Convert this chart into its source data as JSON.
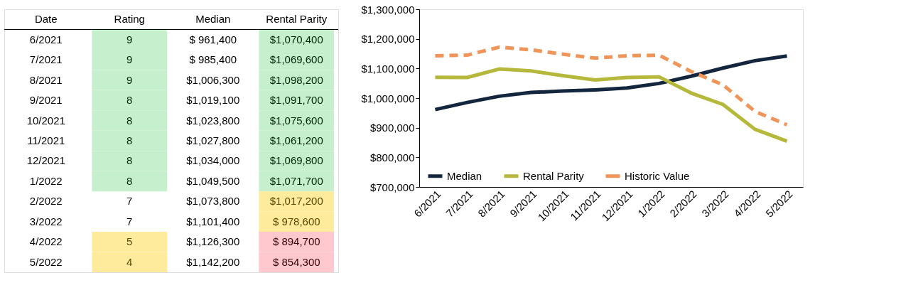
{
  "chart_data": [
    {
      "type": "other",
      "xlabel": "Date",
      "categories": [
        "6/2021",
        "7/2021",
        "8/2021",
        "9/2021",
        "10/2021",
        "11/2021",
        "12/2021",
        "1/2022",
        "2/2022",
        "3/2022",
        "4/2022",
        "5/2022"
      ],
      "series": [
        {
          "name": "Rating",
          "values": [
            9,
            9,
            9,
            8,
            8,
            8,
            8,
            8,
            7,
            7,
            5,
            4
          ],
          "value_labels": [
            "9",
            "9",
            "9",
            "8",
            "8",
            "8",
            "8",
            "8",
            "7",
            "7",
            "5",
            "4"
          ],
          "colors": [
            "#c6efce",
            "#c6efce",
            "#c6efce",
            "#c6efce",
            "#c6efce",
            "#c6efce",
            "#c6efce",
            "#c6efce",
            null,
            null,
            "#ffeb9c",
            "#ffeb9c"
          ]
        },
        {
          "name": "Median",
          "values": [
            961400,
            985400,
            1006300,
            1019100,
            1023800,
            1027800,
            1034000,
            1049500,
            1073800,
            1101400,
            1126300,
            1142200
          ],
          "value_labels": [
            "$ 961,400",
            "$ 985,400",
            "$1,006,300",
            "$1,019,100",
            "$1,023,800",
            "$1,027,800",
            "$1,034,000",
            "$1,049,500",
            "$1,073,800",
            "$1,101,400",
            "$1,126,300",
            "$1,142,200"
          ],
          "colors": [
            null,
            null,
            null,
            null,
            null,
            null,
            null,
            null,
            null,
            null,
            null,
            null
          ]
        },
        {
          "name": "Rental Parity",
          "values": [
            1070400,
            1069600,
            1098200,
            1091700,
            1075600,
            1061200,
            1069800,
            1071700,
            1017200,
            978600,
            894700,
            854300
          ],
          "value_labels": [
            "$1,070,400",
            "$1,069,600",
            "$1,098,200",
            "$1,091,700",
            "$1,075,600",
            "$1,061,200",
            "$1,069,800",
            "$1,071,700",
            "$1,017,200",
            "$ 978,600",
            "$ 894,700",
            "$ 854,300"
          ],
          "colors": [
            "#c6efce",
            "#c6efce",
            "#c6efce",
            "#c6efce",
            "#c6efce",
            "#c6efce",
            "#c6efce",
            "#c6efce",
            "#ffeb9c",
            "#ffeb9c",
            "#ffc7ce",
            "#ffc7ce"
          ]
        }
      ]
    },
    {
      "type": "line",
      "categories": [
        "6/2021",
        "7/2021",
        "8/2021",
        "9/2021",
        "10/2021",
        "11/2021",
        "12/2021",
        "1/2022",
        "2/2022",
        "3/2022",
        "4/2022",
        "5/2022"
      ],
      "series": [
        {
          "name": "Median",
          "color": "#14253e",
          "values": [
            961400,
            985400,
            1006300,
            1019100,
            1023800,
            1027800,
            1034000,
            1049500,
            1073800,
            1101400,
            1126300,
            1142200
          ]
        },
        {
          "name": "Rental Parity",
          "color": "#b5b83a",
          "values": [
            1070400,
            1069600,
            1098200,
            1091700,
            1075600,
            1061200,
            1069800,
            1071700,
            1017200,
            978600,
            894700,
            854300
          ]
        },
        {
          "name": "Historic Value",
          "color": "#f0955a",
          "line_style": "dashed",
          "values": [
            1143000,
            1145000,
            1172000,
            1163000,
            1148000,
            1135000,
            1143000,
            1145000,
            1090000,
            1045000,
            955000,
            910000
          ]
        }
      ],
      "ylim": [
        700000,
        1300000
      ],
      "yticks": [
        {
          "value": 700000,
          "label": "$700,000"
        },
        {
          "value": 800000,
          "label": "$800,000"
        },
        {
          "value": 900000,
          "label": "$900,000"
        },
        {
          "value": 1000000,
          "label": "$1,000,000"
        },
        {
          "value": 1100000,
          "label": "$1,100,000"
        },
        {
          "value": 1200000,
          "label": "$1,200,000"
        },
        {
          "value": 1300000,
          "label": "$1,300,000"
        }
      ],
      "grid": false,
      "legend": "bottom",
      "marker": "none",
      "line_style": "solid"
    }
  ]
}
